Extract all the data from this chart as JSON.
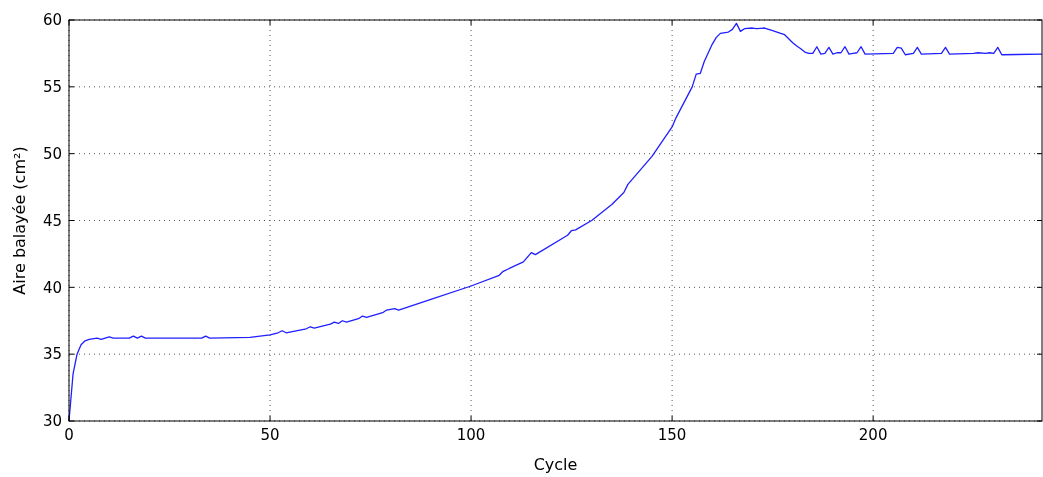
{
  "chart_data": {
    "type": "line",
    "xlabel": "Cycle",
    "ylabel": "Aire balayée (cm²)",
    "xlim": [
      0,
      242
    ],
    "ylim": [
      30,
      60
    ],
    "xticks": [
      0,
      50,
      100,
      150,
      200
    ],
    "yticks": [
      30,
      35,
      40,
      45,
      50,
      55,
      60
    ],
    "grid": true,
    "line_style": "solid",
    "series": [
      {
        "color": "#1f1fff",
        "x": [
          0,
          1,
          2,
          3,
          4,
          5,
          7,
          8,
          10,
          11,
          15,
          16,
          17,
          18,
          19,
          33,
          34,
          35,
          45,
          50,
          52,
          53,
          54,
          59,
          60,
          61,
          65,
          66,
          67,
          68,
          69,
          72,
          73,
          74,
          78,
          79,
          81,
          82,
          90,
          100,
          107,
          108,
          113,
          115,
          116,
          124,
          125,
          126,
          130,
          135,
          138,
          139,
          145,
          150,
          151,
          155,
          156,
          157,
          158,
          160,
          161,
          162,
          164,
          165,
          166,
          167,
          168,
          170,
          171,
          173,
          175,
          177,
          178,
          180,
          181,
          182,
          183,
          184,
          185,
          186,
          187,
          188,
          189,
          190,
          191,
          192,
          193,
          194,
          195,
          196,
          197,
          198,
          205,
          206,
          207,
          208,
          210,
          211,
          212,
          217,
          218,
          219,
          225,
          226,
          228,
          229,
          230,
          231,
          232,
          242
        ],
        "values": [
          30,
          33.5,
          35,
          35.7,
          36,
          36.1,
          36.2,
          36.1,
          36.3,
          36.2,
          36.2,
          36.35,
          36.2,
          36.35,
          36.2,
          36.2,
          36.35,
          36.2,
          36.25,
          36.45,
          36.6,
          36.75,
          36.6,
          36.9,
          37.05,
          36.95,
          37.25,
          37.4,
          37.3,
          37.5,
          37.4,
          37.65,
          37.85,
          37.75,
          38.1,
          38.3,
          38.4,
          38.3,
          39.1,
          40.1,
          40.9,
          41.2,
          41.9,
          42.6,
          42.45,
          43.9,
          44.25,
          44.3,
          45,
          46.2,
          47.1,
          47.7,
          49.8,
          52,
          52.7,
          55,
          55.95,
          56,
          56.9,
          58.2,
          58.7,
          59,
          59.1,
          59.3,
          59.75,
          59.15,
          59.35,
          59.4,
          59.35,
          59.4,
          59.2,
          59,
          58.9,
          58.3,
          58.05,
          57.85,
          57.6,
          57.5,
          57.5,
          58,
          57.45,
          57.5,
          57.95,
          57.45,
          57.55,
          57.55,
          58,
          57.45,
          57.5,
          57.55,
          58,
          57.45,
          57.5,
          57.95,
          57.9,
          57.4,
          57.5,
          57.95,
          57.45,
          57.5,
          57.95,
          57.45,
          57.5,
          57.55,
          57.5,
          57.55,
          57.5,
          57.95,
          57.4,
          57.45
        ]
      }
    ]
  }
}
